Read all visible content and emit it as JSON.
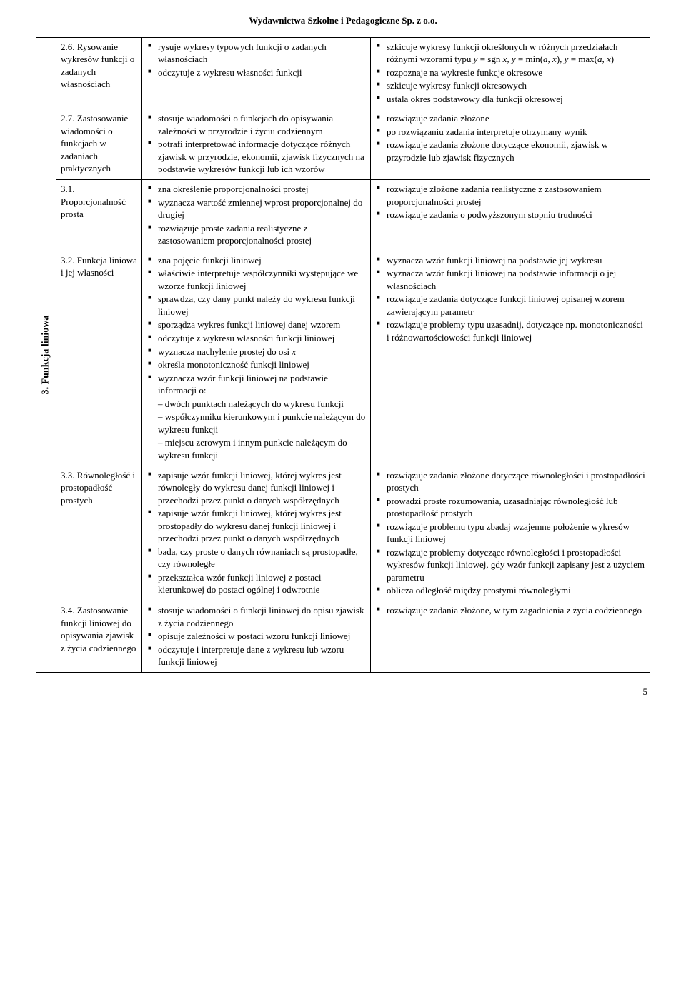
{
  "header": "Wydawnictwa Szkolne i Pedagogiczne Sp. z o.o.",
  "section_label": "3. Funkcja liniowa",
  "page_number": "5",
  "rows": [
    {
      "topic": "2.6. Rysowanie wykresów funkcji o zadanych własnościach",
      "mid": [
        "rysuje wykresy typowych funkcji o zadanych własnościach",
        "odczytuje z wykresu własności funkcji"
      ],
      "mid_sub": [],
      "right": [
        "szkicuje wykresy funkcji określonych w różnych przedziałach różnymi wzorami typu y = sgn x, y = min(a, x), y = max(a, x)",
        "rozpoznaje na wykresie funkcje okresowe",
        "szkicuje wykresy funkcji okresowych",
        "ustala okres podstawowy dla funkcji okresowej"
      ]
    },
    {
      "topic": "2.7. Zastosowanie wiadomości o funkcjach w zadaniach praktycznych",
      "mid": [
        "stosuje wiadomości o funkcjach do opisywania zależności w przyrodzie i życiu codziennym",
        "potrafi interpretować informacje dotyczące różnych zjawisk w przyrodzie, ekonomii, zjawisk fizycznych na podstawie wykresów funkcji lub ich wzorów"
      ],
      "mid_sub": [],
      "right": [
        "rozwiązuje zadania złożone",
        "po rozwiązaniu zadania interpretuje otrzymany wynik",
        "rozwiązuje zadania złożone dotyczące ekonomii, zjawisk w przyrodzie lub zjawisk fizycznych"
      ]
    },
    {
      "topic": "3.1. Proporcjonalność prosta",
      "mid": [
        "zna określenie proporcjonalności prostej",
        "wyznacza wartość zmiennej wprost proporcjonalnej do drugiej",
        "rozwiązuje proste zadania realistyczne z zastosowaniem proporcjonalności prostej"
      ],
      "mid_sub": [],
      "right": [
        "rozwiązuje złożone zadania realistyczne z zastosowaniem proporcjonalności prostej",
        "rozwiązuje zadania o podwyższonym stopniu trudności"
      ]
    },
    {
      "topic": "3.2. Funkcja liniowa i jej własności",
      "mid": [
        "zna pojęcie funkcji liniowej",
        "właściwie interpretuje współczynniki występujące we wzorze funkcji liniowej",
        "sprawdza, czy dany punkt należy do wykresu funkcji liniowej",
        "sporządza wykres funkcji liniowej danej wzorem",
        "odczytuje z wykresu własności funkcji liniowej",
        "wyznacza nachylenie prostej do osi x",
        "określa monotoniczność funkcji liniowej",
        "wyznacza wzór funkcji liniowej na podstawie informacji o:"
      ],
      "mid_sub": [
        "– dwóch punktach należących do wykresu funkcji",
        "– współczynniku kierunkowym i punkcie należącym do wykresu funkcji",
        "– miejscu zerowym i innym punkcie należącym do wykresu funkcji"
      ],
      "right": [
        "wyznacza wzór funkcji liniowej na podstawie jej wykresu",
        "wyznacza wzór funkcji liniowej na podstawie informacji o jej własnościach",
        "rozwiązuje zadania dotyczące funkcji liniowej opisanej wzorem zawierającym parametr",
        "rozwiązuje problemy typu uzasadnij, dotyczące np. monotoniczności i różnowartościowości funkcji liniowej"
      ]
    },
    {
      "topic": "3.3. Równoległość i prostopadłość prostych",
      "mid": [
        "zapisuje wzór funkcji liniowej, której wykres jest równoległy do wykresu danej funkcji liniowej i przechodzi przez punkt o danych współrzędnych",
        "zapisuje wzór funkcji liniowej, której wykres jest prostopadły do wykresu danej funkcji liniowej i przechodzi przez punkt o danych współrzędnych",
        "bada, czy proste o danych równaniach są prostopadłe, czy równoległe",
        "przekształca wzór funkcji liniowej z postaci kierunkowej do postaci ogólnej i odwrotnie"
      ],
      "mid_sub": [],
      "right": [
        "rozwiązuje zadania złożone dotyczące równoległości i prostopadłości prostych",
        "prowadzi proste rozumowania, uzasadniając równoległość lub prostopadłość prostych",
        "rozwiązuje problemu typu zbadaj wzajemne położenie wykresów funkcji liniowej",
        "rozwiązuje problemy dotyczące równoległości i prostopadłości wykresów funkcji liniowej, gdy wzór funkcji zapisany jest z użyciem parametru",
        "oblicza odległość między prostymi równoległymi"
      ]
    },
    {
      "topic": "3.4. Zastosowanie funkcji liniowej do opisywania zjawisk z życia codziennego",
      "mid": [
        "stosuje wiadomości o funkcji liniowej do opisu zjawisk z życia codziennego",
        "opisuje zależności w postaci wzoru funkcji liniowej",
        "odczytuje i interpretuje dane z wykresu lub wzoru funkcji liniowej"
      ],
      "mid_sub": [],
      "right": [
        "rozwiązuje zadania złożone, w tym zagadnienia z życia codziennego"
      ]
    }
  ]
}
